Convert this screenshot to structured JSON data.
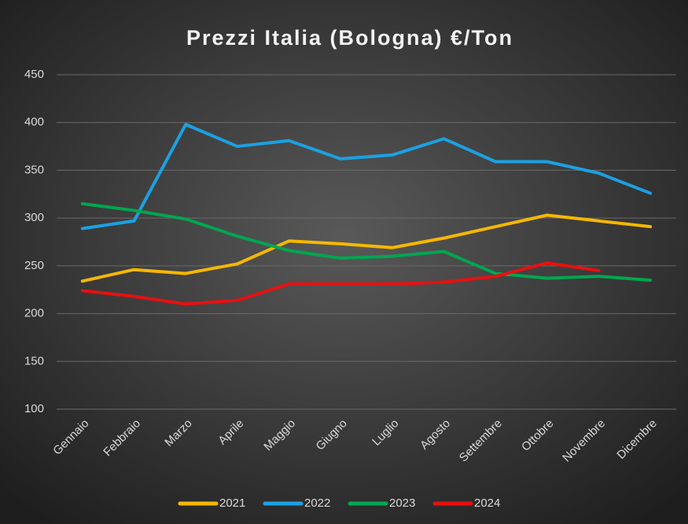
{
  "chart_data": {
    "type": "line",
    "title": "Prezzi Italia (Bologna) €/Ton",
    "categories": [
      "Gennaio",
      "Febbraio",
      "Marzo",
      "Aprile",
      "Maggio",
      "Giugno",
      "Luglio",
      "Agosto",
      "Settembre",
      "Ottobre",
      "Novembre",
      "Dicembre"
    ],
    "series": [
      {
        "name": "2021",
        "color": "#f5b800",
        "values": [
          234,
          246,
          242,
          252,
          276,
          273,
          269,
          279,
          291,
          303,
          297,
          291
        ]
      },
      {
        "name": "2022",
        "color": "#1ba1e2",
        "values": [
          289,
          297,
          398,
          375,
          381,
          362,
          366,
          383,
          359,
          359,
          347,
          326
        ]
      },
      {
        "name": "2023",
        "color": "#00a650",
        "values": [
          315,
          308,
          299,
          281,
          266,
          258,
          260,
          265,
          242,
          237,
          239,
          235
        ]
      },
      {
        "name": "2024",
        "color": "#e81010",
        "values": [
          224,
          218,
          210,
          214,
          231,
          231,
          231,
          233,
          239,
          253,
          245,
          null
        ]
      }
    ],
    "ylim": [
      100,
      450
    ],
    "yticks": [
      100,
      150,
      200,
      250,
      300,
      350,
      400,
      450
    ],
    "grid": true,
    "legend": "bottom"
  }
}
